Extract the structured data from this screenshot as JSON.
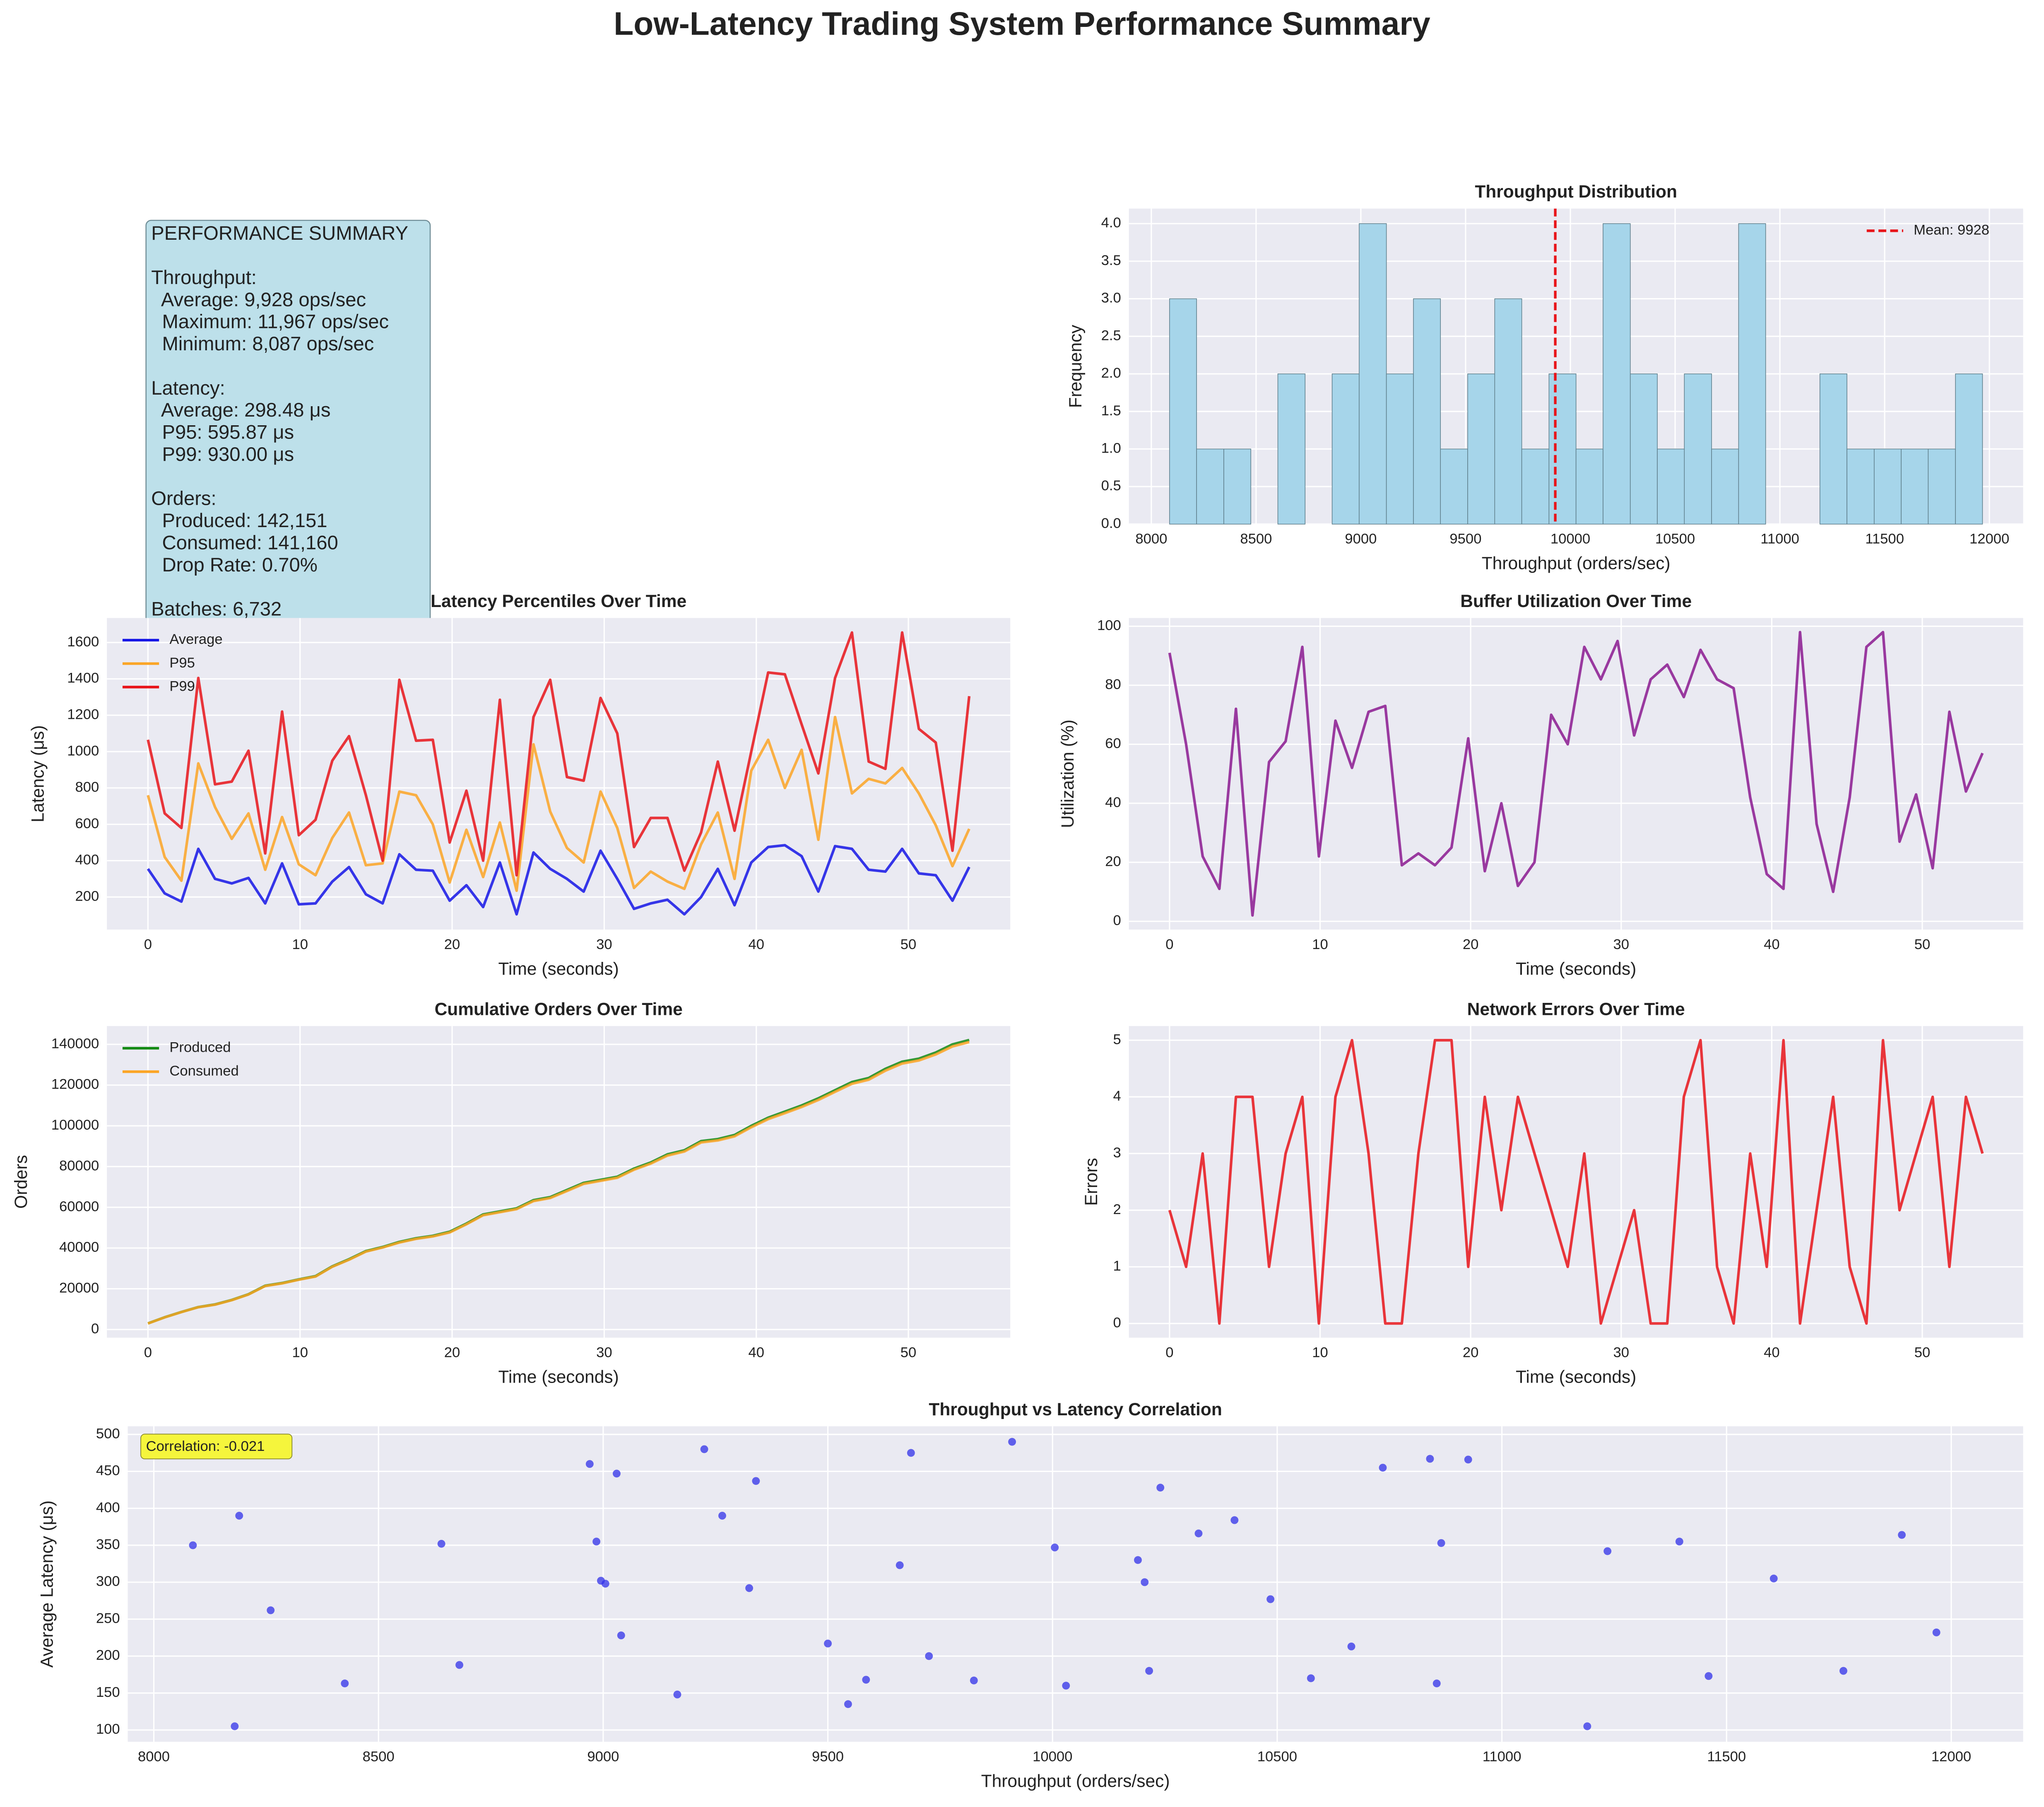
{
  "title": "Low-Latency Trading System Performance Summary",
  "summary": {
    "sections": [
      [
        "PERFORMANCE SUMMARY"
      ],
      [
        "Throughput:",
        "  Average: 9,928 ops/sec",
        "  Maximum: 11,967 ops/sec",
        "  Minimum: 8,087 ops/sec"
      ],
      [
        "Latency:",
        "  Average: 298.48 μs",
        "  P95: 595.87 μs",
        "  P99: 930.00 μs"
      ],
      [
        "Orders:",
        "  Produced: 142,151",
        "  Consumed: 141,160",
        "  Drop Rate: 0.70%"
      ],
      [
        "Batches: 6,732"
      ]
    ]
  },
  "chart_data": [
    {
      "type": "hist",
      "title": "Throughput Distribution",
      "xlabel": "Throughput (orders/sec)",
      "ylabel": "Frequency",
      "bins": [
        8087,
        8216,
        8346,
        8475,
        8604,
        8734,
        8863,
        8992,
        9122,
        9251,
        9380,
        9510,
        9639,
        9768,
        9898,
        10027,
        10156,
        10286,
        10415,
        10544,
        10674,
        10803,
        10932,
        11062,
        11191,
        11320,
        11450,
        11579,
        11708,
        11838,
        11967
      ],
      "counts": [
        3,
        1,
        1,
        0,
        2,
        0,
        2,
        4,
        2,
        3,
        1,
        2,
        3,
        1,
        2,
        1,
        4,
        2,
        1,
        2,
        1,
        4,
        0,
        0,
        2,
        1,
        1,
        1,
        1,
        2
      ],
      "color": "#a6d5ea",
      "edgecolor": "#5f7f8c",
      "reference_line": {
        "name": "Mean: 9928",
        "value": 9928,
        "color": "#e8141a"
      },
      "xlim": [
        7893,
        12161
      ],
      "xticks": [
        8000,
        8500,
        9000,
        9500,
        10000,
        10500,
        11000,
        11500,
        12000
      ],
      "ylim": [
        0,
        4.2
      ],
      "yticks": [
        {
          "value": 0,
          "label": "0.0"
        },
        {
          "value": 0.5,
          "label": "0.5"
        },
        {
          "value": 1,
          "label": "1.0"
        },
        {
          "value": 1.5,
          "label": "1.5"
        },
        {
          "value": 2,
          "label": "2.0"
        },
        {
          "value": 2.5,
          "label": "2.5"
        },
        {
          "value": 3,
          "label": "3.0"
        },
        {
          "value": 3.5,
          "label": "3.5"
        },
        {
          "value": 4,
          "label": "4.0"
        }
      ],
      "grid": true,
      "legend": "upper right"
    },
    {
      "type": "line",
      "title": "Latency Percentiles Over Time",
      "xlabel": "Time (seconds)",
      "ylabel": "Latency (μs)",
      "x": [
        0,
        1.1,
        2.2,
        3.31,
        4.41,
        5.51,
        6.61,
        7.71,
        8.82,
        9.92,
        11.02,
        12.12,
        13.22,
        14.33,
        15.43,
        16.53,
        17.63,
        18.73,
        19.84,
        20.94,
        22.04,
        23.14,
        24.24,
        25.35,
        26.45,
        27.55,
        28.65,
        29.76,
        30.86,
        31.96,
        33.06,
        34.16,
        35.27,
        36.37,
        37.47,
        38.57,
        39.67,
        40.78,
        41.88,
        42.98,
        44.08,
        45.18,
        46.29,
        47.39,
        48.49,
        49.59,
        50.69,
        51.8,
        52.9,
        54
      ],
      "series": [
        {
          "name": "Average",
          "color": "#1515e6",
          "values": [
            355,
            220,
            175,
            465,
            300,
            275,
            305,
            165,
            385,
            160,
            165,
            285,
            365,
            215,
            165,
            435,
            350,
            345,
            180,
            265,
            145,
            390,
            105,
            445,
            355,
            300,
            230,
            455,
            300,
            135,
            165,
            185,
            105,
            200,
            355,
            155,
            390,
            475,
            485,
            425,
            230,
            480,
            465,
            350,
            340,
            465,
            330,
            320,
            180,
            365
          ]
        },
        {
          "name": "P95",
          "color": "#fba526",
          "values": [
            760,
            420,
            290,
            935,
            695,
            520,
            660,
            350,
            640,
            380,
            320,
            525,
            665,
            375,
            385,
            780,
            760,
            600,
            280,
            570,
            310,
            610,
            235,
            1040,
            670,
            470,
            390,
            780,
            580,
            250,
            340,
            285,
            245,
            490,
            665,
            300,
            895,
            1065,
            800,
            1010,
            515,
            1190,
            770,
            850,
            825,
            910,
            770,
            595,
            370,
            575
          ]
        },
        {
          "name": "P99",
          "color": "#e8141a",
          "values": [
            1065,
            660,
            580,
            1405,
            820,
            835,
            1005,
            440,
            1220,
            540,
            625,
            950,
            1085,
            760,
            400,
            1395,
            1060,
            1065,
            500,
            785,
            400,
            1285,
            320,
            1190,
            1395,
            860,
            840,
            1295,
            1100,
            475,
            635,
            635,
            345,
            555,
            945,
            565,
            1000,
            1435,
            1425,
            1150,
            880,
            1405,
            1655,
            945,
            905,
            1655,
            1125,
            1050,
            455,
            1305
          ]
        }
      ],
      "xlim": [
        -2.7,
        56.7
      ],
      "xticks": [
        0,
        10,
        20,
        30,
        40,
        50
      ],
      "ylim": [
        21,
        1735
      ],
      "yticks": [
        200,
        400,
        600,
        800,
        1000,
        1200,
        1400,
        1600
      ],
      "grid": true,
      "legend": "upper left"
    },
    {
      "type": "line",
      "title": "Buffer Utilization Over Time",
      "xlabel": "Time (seconds)",
      "ylabel": "Utilization (%)",
      "x": [
        0,
        1.1,
        2.2,
        3.31,
        4.41,
        5.51,
        6.61,
        7.71,
        8.82,
        9.92,
        11.02,
        12.12,
        13.22,
        14.33,
        15.43,
        16.53,
        17.63,
        18.73,
        19.84,
        20.94,
        22.04,
        23.14,
        24.24,
        25.35,
        26.45,
        27.55,
        28.65,
        29.76,
        30.86,
        31.96,
        33.06,
        34.16,
        35.27,
        36.37,
        37.47,
        38.57,
        39.67,
        40.78,
        41.88,
        42.98,
        44.08,
        45.18,
        46.29,
        47.39,
        48.49,
        49.59,
        50.69,
        51.8,
        52.9,
        54
      ],
      "series": [
        {
          "color": "#8b1a91",
          "values": [
            91,
            60,
            22,
            11,
            72,
            2,
            54,
            61,
            93,
            22,
            68,
            52,
            71,
            73,
            19,
            23,
            19,
            25,
            62,
            17,
            40,
            12,
            20,
            70,
            60,
            93,
            82,
            95,
            63,
            82,
            87,
            76,
            92,
            82,
            79,
            42,
            16,
            11,
            98,
            33,
            10,
            42,
            93,
            98,
            27,
            43,
            18,
            71,
            44,
            57
          ]
        }
      ],
      "xlim": [
        -2.7,
        56.7
      ],
      "xticks": [
        0,
        10,
        20,
        30,
        40,
        50
      ],
      "ylim": [
        -2.8,
        102.8
      ],
      "yticks": [
        0,
        20,
        40,
        60,
        80,
        100
      ],
      "grid": true
    },
    {
      "type": "line",
      "title": "Cumulative Orders Over Time",
      "xlabel": "Time (seconds)",
      "ylabel": "Orders",
      "x": [
        0,
        1.1,
        2.2,
        3.31,
        4.41,
        5.51,
        6.61,
        7.71,
        8.82,
        9.92,
        11.02,
        12.12,
        13.22,
        14.33,
        15.43,
        16.53,
        17.63,
        18.73,
        19.84,
        20.94,
        22.04,
        23.14,
        24.24,
        25.35,
        26.45,
        27.55,
        28.65,
        29.76,
        30.86,
        31.96,
        33.06,
        34.16,
        35.27,
        36.37,
        37.47,
        38.57,
        39.67,
        40.78,
        41.88,
        42.98,
        44.08,
        45.18,
        46.29,
        47.39,
        48.49,
        49.59,
        50.69,
        51.8,
        52.9,
        54
      ],
      "series": [
        {
          "name": "Produced",
          "color": "#138a13",
          "values": [
            3000,
            6000,
            8600,
            11000,
            12300,
            14500,
            17300,
            21500,
            22800,
            24600,
            26200,
            31000,
            34500,
            38500,
            40500,
            43000,
            44800,
            46000,
            48000,
            52000,
            56500,
            58000,
            59500,
            63500,
            65000,
            68500,
            72000,
            73500,
            75000,
            79000,
            82000,
            86000,
            88000,
            92500,
            93500,
            95500,
            100000,
            104000,
            107000,
            110000,
            113500,
            117500,
            121500,
            123500,
            128000,
            131500,
            133000,
            136000,
            140000,
            142151
          ]
        },
        {
          "name": "Consumed",
          "color": "#fba526",
          "values": [
            2950,
            5950,
            8550,
            10950,
            12200,
            14400,
            17200,
            21350,
            22650,
            24450,
            26000,
            30800,
            34250,
            38250,
            40250,
            42700,
            44500,
            45700,
            47650,
            51650,
            56100,
            57600,
            59100,
            63050,
            64550,
            68000,
            71500,
            73000,
            74500,
            78450,
            81450,
            85400,
            87400,
            91850,
            92850,
            94850,
            99300,
            103300,
            106250,
            109250,
            112700,
            116700,
            120650,
            122650,
            127100,
            130600,
            132100,
            135050,
            139000,
            141160
          ]
        }
      ],
      "xlim": [
        -2.7,
        56.7
      ],
      "xticks": [
        0,
        10,
        20,
        30,
        40,
        50
      ],
      "ylim": [
        -4000,
        149000
      ],
      "yticks": [
        0,
        20000,
        40000,
        60000,
        80000,
        100000,
        120000,
        140000
      ],
      "grid": true,
      "legend": "upper left"
    },
    {
      "type": "line",
      "title": "Network Errors Over Time",
      "xlabel": "Time (seconds)",
      "ylabel": "Errors",
      "x": [
        0,
        1.1,
        2.2,
        3.31,
        4.41,
        5.51,
        6.61,
        7.71,
        8.82,
        9.92,
        11.02,
        12.12,
        13.22,
        14.33,
        15.43,
        16.53,
        17.63,
        18.73,
        19.84,
        20.94,
        22.04,
        23.14,
        24.24,
        25.35,
        26.45,
        27.55,
        28.65,
        29.76,
        30.86,
        31.96,
        33.06,
        34.16,
        35.27,
        36.37,
        37.47,
        38.57,
        39.67,
        40.78,
        41.88,
        42.98,
        44.08,
        45.18,
        46.29,
        47.39,
        48.49,
        49.59,
        50.69,
        51.8,
        52.9,
        54
      ],
      "series": [
        {
          "color": "#e8141a",
          "values": [
            2,
            1,
            3,
            0,
            4,
            4,
            1,
            3,
            4,
            0,
            4,
            5,
            3,
            0,
            0,
            3,
            5,
            5,
            1,
            4,
            2,
            4,
            3,
            2,
            1,
            3,
            0,
            1,
            2,
            0,
            0,
            4,
            5,
            1,
            0,
            3,
            1,
            5,
            0,
            2,
            4,
            1,
            0,
            5,
            2,
            3,
            4,
            1,
            4,
            3
          ]
        }
      ],
      "xlim": [
        -2.7,
        56.7
      ],
      "xticks": [
        0,
        10,
        20,
        30,
        40,
        50
      ],
      "ylim": [
        -0.25,
        5.25
      ],
      "yticks": [
        0,
        1,
        2,
        3,
        4,
        5
      ],
      "grid": true
    },
    {
      "type": "scatter",
      "title": "Throughput vs Latency Correlation",
      "xlabel": "Throughput (orders/sec)",
      "ylabel": "Average Latency (μs)",
      "annotation": "Correlation: -0.021",
      "color": "#3030e8",
      "x": [
        8087,
        8190,
        8180,
        8260,
        8425,
        8640,
        8680,
        8970,
        8985,
        8995,
        9005,
        9030,
        9040,
        9165,
        9225,
        9265,
        9325,
        9340,
        9500,
        9545,
        9585,
        9660,
        9685,
        9725,
        9825,
        9910,
        10005,
        10030,
        10190,
        10205,
        10215,
        10240,
        10325,
        10405,
        10485,
        10575,
        10665,
        10735,
        10840,
        10855,
        10865,
        10925,
        11190,
        11235,
        11395,
        11460,
        11605,
        11760,
        11890,
        11967
      ],
      "values": [
        350,
        390,
        105,
        262,
        163,
        352,
        188,
        460,
        355,
        302,
        298,
        447,
        228,
        148,
        480,
        390,
        292,
        437,
        217,
        135,
        168,
        323,
        475,
        200,
        167,
        490,
        347,
        160,
        330,
        300,
        180,
        428,
        366,
        384,
        277,
        170,
        213,
        455,
        467,
        163,
        353,
        466,
        105,
        342,
        355,
        173,
        305,
        180,
        364,
        232
      ],
      "xlim": [
        7942,
        12160
      ],
      "xticks": [
        8000,
        8500,
        9000,
        9500,
        10000,
        10500,
        11000,
        11500,
        12000
      ],
      "ylim": [
        84,
        511
      ],
      "yticks": [
        100,
        150,
        200,
        250,
        300,
        350,
        400,
        450,
        500
      ],
      "grid": true
    }
  ]
}
